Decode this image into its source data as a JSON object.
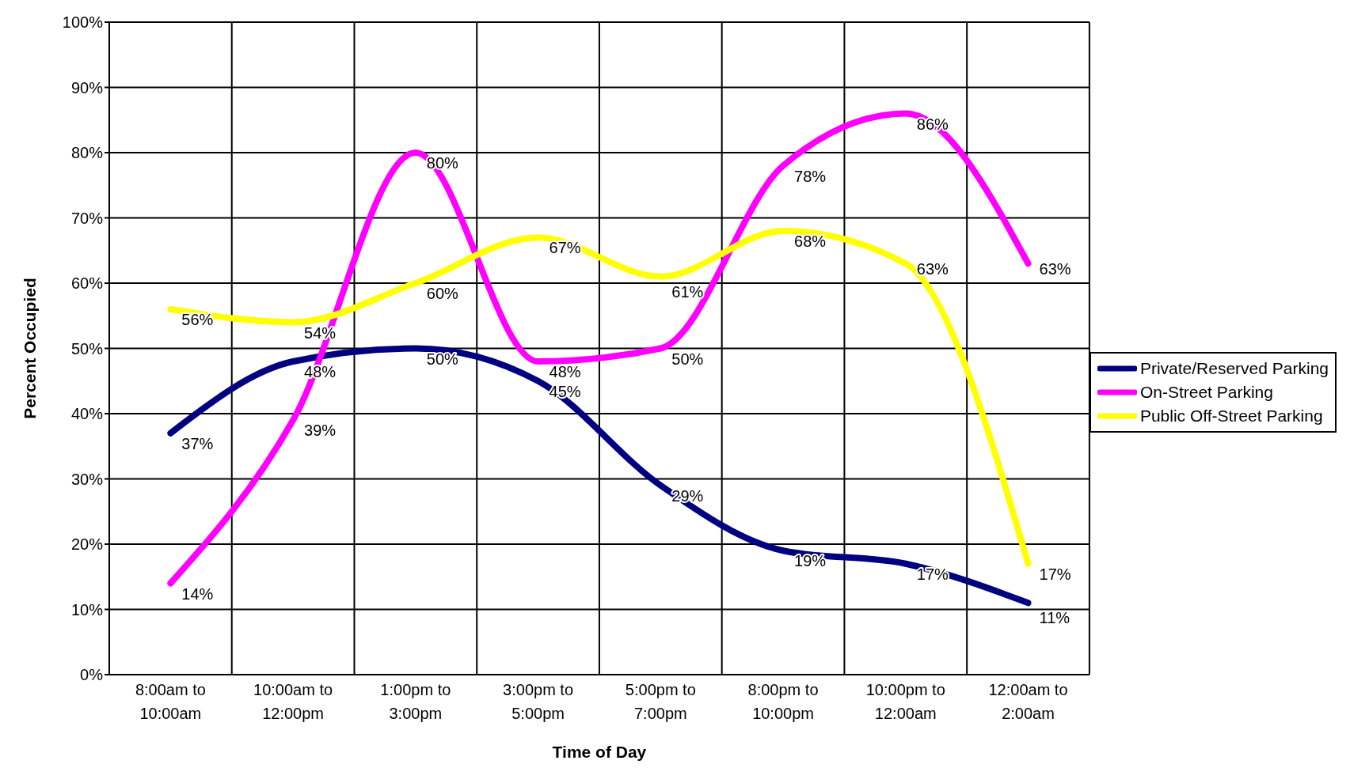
{
  "chart_data": {
    "type": "line",
    "xlabel": "Time of Day",
    "ylabel": "Percent Occupied",
    "categories": [
      "8:00am to 10:00am",
      "10:00am to 12:00pm",
      "1:00pm to 3:00pm",
      "3:00pm to 5:00pm",
      "5:00pm to 7:00pm",
      "8:00pm to 10:00pm",
      "10:00pm to 12:00am",
      "12:00am to 2:00am"
    ],
    "series": [
      {
        "name": "Private/Reserved Parking",
        "color": "#000080",
        "values": [
          37,
          48,
          50,
          45,
          29,
          19,
          17,
          11
        ]
      },
      {
        "name": "On-Street Parking",
        "color": "#ff00ff",
        "values": [
          14,
          39,
          80,
          48,
          50,
          78,
          86,
          63
        ]
      },
      {
        "name": "Public Off-Street Parking",
        "color": "#ffff00",
        "values": [
          56,
          54,
          60,
          67,
          61,
          68,
          63,
          17
        ]
      }
    ],
    "ylim": [
      0,
      100
    ],
    "yticks": [
      {
        "value": 0,
        "label": "0%"
      },
      {
        "value": 10,
        "label": "10%"
      },
      {
        "value": 20,
        "label": "20%"
      },
      {
        "value": 30,
        "label": "30%"
      },
      {
        "value": 40,
        "label": "40%"
      },
      {
        "value": 50,
        "label": "50%"
      },
      {
        "value": 60,
        "label": "60%"
      },
      {
        "value": 70,
        "label": "70%"
      },
      {
        "value": 80,
        "label": "80%"
      },
      {
        "value": 90,
        "label": "90%"
      },
      {
        "value": 100,
        "label": "100%"
      }
    ],
    "value_labels": [
      [
        "37%",
        "48%",
        "50%",
        "45%",
        "29%",
        "19%",
        "17%",
        "11%"
      ],
      [
        "14%",
        "39%",
        "80%",
        "48%",
        "50%",
        "78%",
        "86%",
        "63%"
      ],
      [
        "56%",
        "54%",
        "60%",
        "67%",
        "61%",
        "68%",
        "63%",
        "17%"
      ]
    ],
    "grid": true,
    "legend": "right",
    "marker": "none",
    "line_style": "solid"
  }
}
